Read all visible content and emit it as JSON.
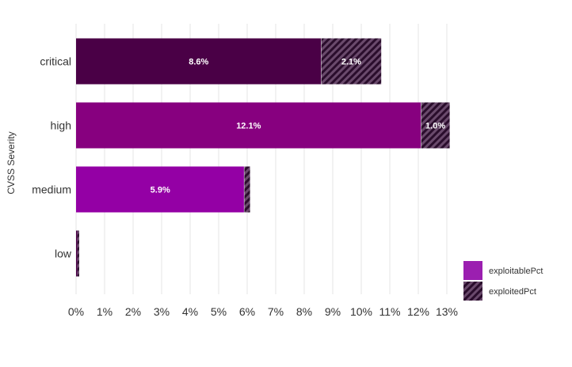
{
  "chart_data": {
    "type": "bar",
    "orientation": "horizontal",
    "stacked": true,
    "title": "",
    "xlabel": "",
    "ylabel": "CVSS Severity",
    "categories": [
      "critical",
      "high",
      "medium",
      "low"
    ],
    "series": [
      {
        "name": "exploitablePct",
        "values": [
          8.6,
          12.1,
          5.9,
          0.05
        ],
        "labels": [
          "8.6%",
          "12.1%",
          "5.9%",
          ""
        ],
        "colors": [
          "#4a0046",
          "#87007f",
          "#9400a5",
          "#4a0046"
        ],
        "pattern": "solid"
      },
      {
        "name": "exploitedPct",
        "values": [
          2.1,
          1.0,
          0.2,
          0.06
        ],
        "labels": [
          "2.1%",
          "1.0%",
          "",
          ""
        ],
        "pattern": "hatched"
      }
    ],
    "xlim": [
      0,
      13
    ],
    "xticks": [
      0,
      1,
      2,
      3,
      4,
      5,
      6,
      7,
      8,
      9,
      10,
      11,
      12,
      13
    ],
    "tick_suffix": "%",
    "grid": "vertical",
    "legend": {
      "position": "bottom-right",
      "items": [
        {
          "label": "exploitablePct",
          "color": "#9b1fb0",
          "pattern": "solid"
        },
        {
          "label": "exploitedPct",
          "color": "#3a1a3c",
          "pattern": "hatched"
        }
      ]
    },
    "hatch_colors": {
      "base": "#2a0d2c",
      "stripe": "#6a4a6c"
    }
  }
}
